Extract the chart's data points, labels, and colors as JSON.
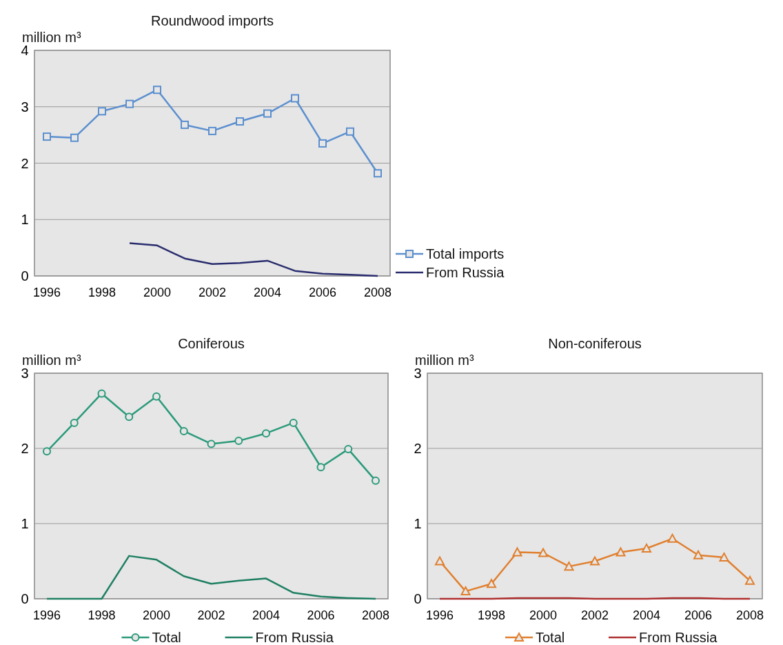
{
  "chart_data": [
    {
      "type": "line",
      "title": "Roundwood imports",
      "ylabel": "million m³",
      "categories": [
        "1996",
        null,
        "1998",
        null,
        "2000",
        null,
        "2002",
        null,
        "2004",
        null,
        "2006",
        null,
        "2008"
      ],
      "ylim": [
        0,
        4
      ],
      "yticks": [
        0,
        1,
        2,
        3,
        4
      ],
      "grid": "y",
      "legend": "bottom right",
      "series": [
        {
          "name": "Total imports",
          "color": "#5b8fcf",
          "marker": "square",
          "values": [
            2.47,
            2.45,
            2.92,
            3.05,
            3.3,
            2.68,
            2.57,
            2.74,
            2.88,
            3.15,
            2.35,
            2.56,
            1.82
          ]
        },
        {
          "name": "From Russia",
          "color": "#2a2d6e",
          "marker": "none",
          "values": [
            null,
            null,
            null,
            0.58,
            0.54,
            0.31,
            0.21,
            0.23,
            0.27,
            0.09,
            0.04,
            0.02,
            0.0
          ]
        }
      ]
    },
    {
      "type": "line",
      "title": "Coniferous",
      "ylabel": "million m³",
      "categories": [
        "1996",
        null,
        "1998",
        null,
        "2000",
        null,
        "2002",
        null,
        "2004",
        null,
        "2006",
        null,
        "2008"
      ],
      "ylim": [
        0,
        3
      ],
      "yticks": [
        0,
        1,
        2,
        3
      ],
      "grid": "y",
      "legend": "bottom",
      "series": [
        {
          "name": "Total",
          "color": "#2a9a7a",
          "marker": "circle",
          "values": [
            1.96,
            2.34,
            2.73,
            2.42,
            2.69,
            2.23,
            2.06,
            2.1,
            2.2,
            2.34,
            1.75,
            1.99,
            1.57
          ]
        },
        {
          "name": "From Russia",
          "color": "#1e7f62",
          "marker": "none",
          "values": [
            0,
            0,
            0,
            0.57,
            0.52,
            0.3,
            0.2,
            0.24,
            0.27,
            0.08,
            0.03,
            0.01,
            0.0
          ]
        }
      ]
    },
    {
      "type": "line",
      "title": "Non-coniferous",
      "ylabel": "million m³",
      "categories": [
        "1996",
        null,
        "1998",
        null,
        "2000",
        null,
        "2002",
        null,
        "2004",
        null,
        "2006",
        null,
        "2008"
      ],
      "ylim": [
        0,
        3
      ],
      "yticks": [
        0,
        1,
        2,
        3
      ],
      "grid": "y",
      "legend": "bottom",
      "series": [
        {
          "name": "Total",
          "color": "#e07f2e",
          "marker": "triangle",
          "values": [
            0.5,
            0.1,
            0.2,
            0.62,
            0.61,
            0.43,
            0.5,
            0.62,
            0.67,
            0.8,
            0.58,
            0.55,
            0.24
          ]
        },
        {
          "name": "From Russia",
          "color": "#b03030",
          "marker": "none",
          "values": [
            0,
            0,
            0,
            0.01,
            0.01,
            0.01,
            0,
            0,
            0,
            0.01,
            0.01,
            0,
            0
          ]
        }
      ]
    }
  ]
}
